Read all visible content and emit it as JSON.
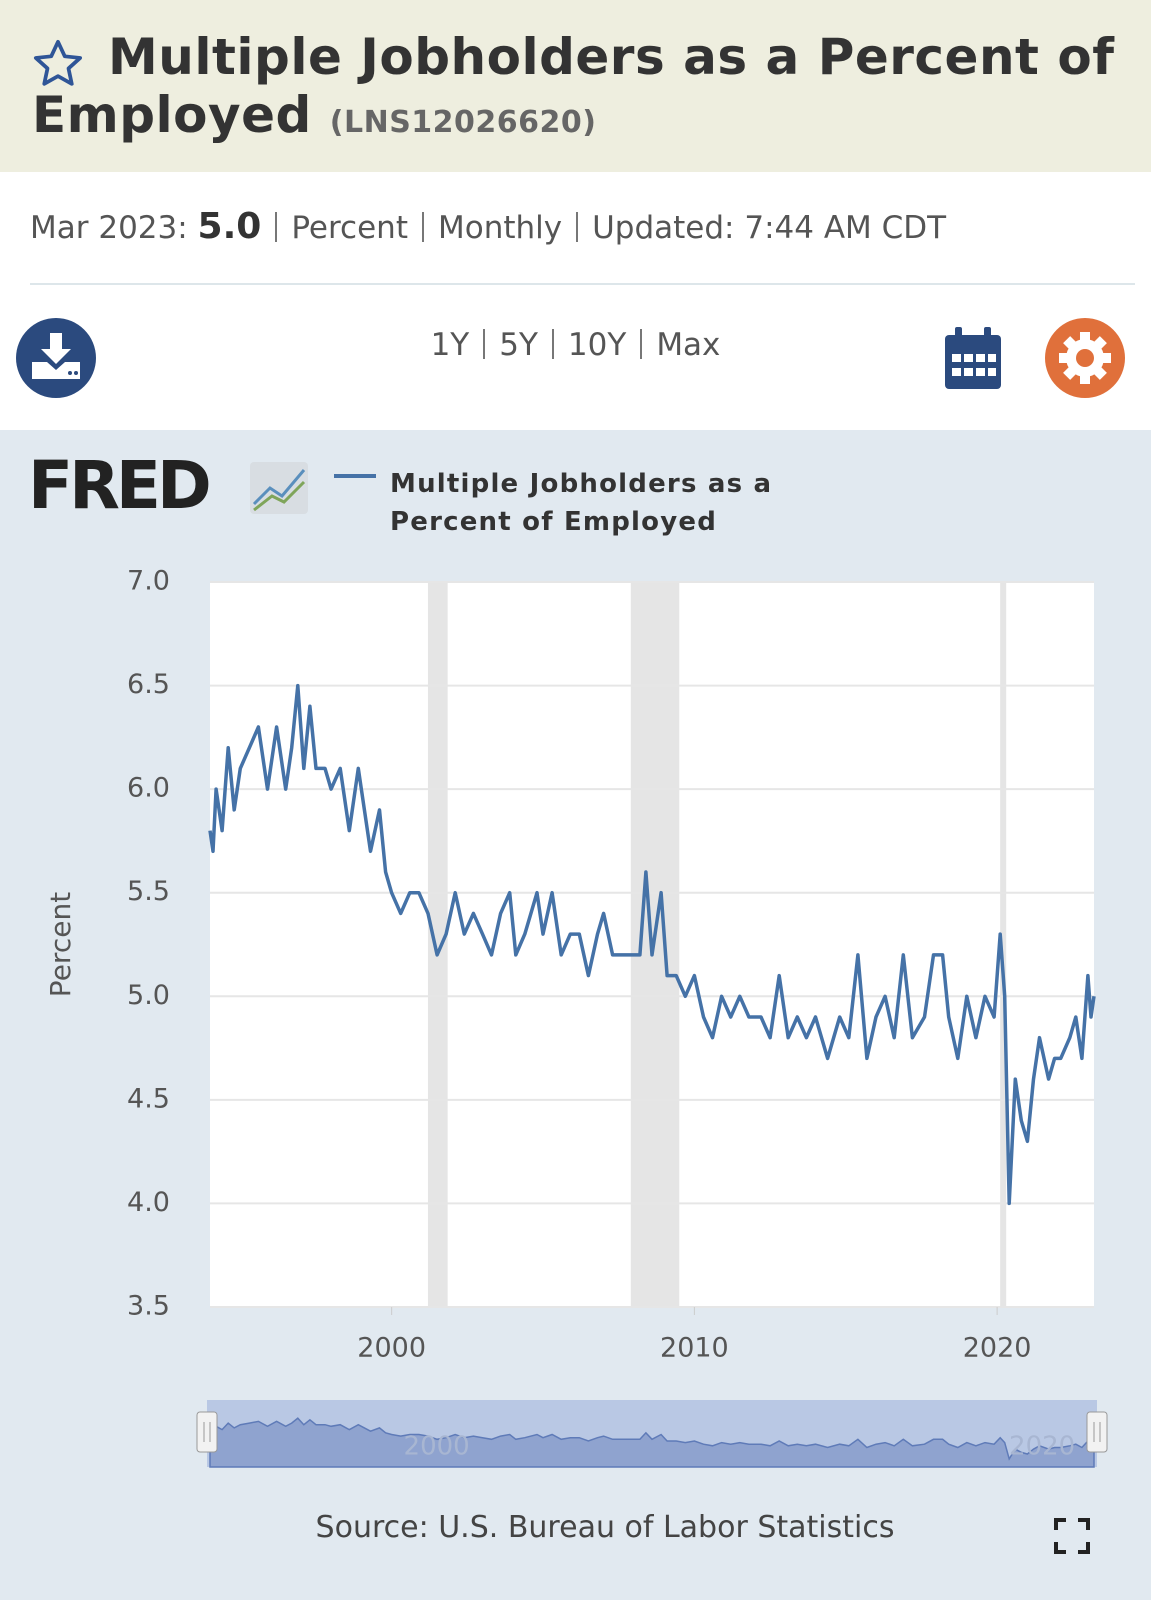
{
  "header": {
    "title": "Multiple Jobholders as a Percent of Employed",
    "series_id": "(LNS12026620)"
  },
  "info": {
    "date": "Mar 2023:",
    "value": "5.0",
    "units": "Percent",
    "frequency": "Monthly",
    "updated_label": "Updated:",
    "updated": "7:44 AM CDT"
  },
  "ranges": [
    "1Y",
    "5Y",
    "10Y",
    "Max"
  ],
  "logo": "FRED",
  "source": "Source: U.S. Bureau of Labor Statistics",
  "chart_data": {
    "type": "line",
    "y_label": "Percent",
    "x": [
      1994.0,
      1994.1,
      1994.2,
      1994.4,
      1994.6,
      1994.8,
      1995.0,
      1995.3,
      1995.6,
      1995.9,
      1996.2,
      1996.5,
      1996.7,
      1996.9,
      1997.1,
      1997.3,
      1997.5,
      1997.8,
      1998.0,
      1998.3,
      1998.6,
      1998.9,
      1999.1,
      1999.3,
      1999.6,
      1999.8,
      2000.0,
      2000.3,
      2000.6,
      2000.9,
      2001.2,
      2001.5,
      2001.8,
      2002.1,
      2002.4,
      2002.7,
      2003.0,
      2003.3,
      2003.6,
      2003.9,
      2004.1,
      2004.4,
      2004.8,
      2005.0,
      2005.3,
      2005.6,
      2005.9,
      2006.2,
      2006.5,
      2006.8,
      2007.0,
      2007.3,
      2007.6,
      2007.9,
      2008.2,
      2008.4,
      2008.6,
      2008.9,
      2009.1,
      2009.4,
      2009.7,
      2010.0,
      2010.3,
      2010.6,
      2010.9,
      2011.2,
      2011.5,
      2011.8,
      2012.2,
      2012.5,
      2012.8,
      2013.1,
      2013.4,
      2013.7,
      2014.0,
      2014.4,
      2014.8,
      2015.1,
      2015.4,
      2015.7,
      2016.0,
      2016.3,
      2016.6,
      2016.9,
      2017.2,
      2017.6,
      2017.9,
      2018.2,
      2018.4,
      2018.7,
      2019.0,
      2019.3,
      2019.6,
      2019.9,
      2020.1,
      2020.25,
      2020.4,
      2020.6,
      2020.8,
      2021.0,
      2021.2,
      2021.4,
      2021.7,
      2021.9,
      2022.1,
      2022.4,
      2022.6,
      2022.8,
      2023.0,
      2023.1,
      2023.2
    ],
    "series": [
      {
        "name": "Multiple Jobholders as a Percent of Employed",
        "color": "#4572a7",
        "values": [
          5.8,
          5.7,
          6.0,
          5.8,
          6.2,
          5.9,
          6.1,
          6.2,
          6.3,
          6.0,
          6.3,
          6.0,
          6.2,
          6.5,
          6.1,
          6.4,
          6.1,
          6.1,
          6.0,
          6.1,
          5.8,
          6.1,
          5.9,
          5.7,
          5.9,
          5.6,
          5.5,
          5.4,
          5.5,
          5.5,
          5.4,
          5.2,
          5.3,
          5.5,
          5.3,
          5.4,
          5.3,
          5.2,
          5.4,
          5.5,
          5.2,
          5.3,
          5.5,
          5.3,
          5.5,
          5.2,
          5.3,
          5.3,
          5.1,
          5.3,
          5.4,
          5.2,
          5.2,
          5.2,
          5.2,
          5.6,
          5.2,
          5.5,
          5.1,
          5.1,
          5.0,
          5.1,
          4.9,
          4.8,
          5.0,
          4.9,
          5.0,
          4.9,
          4.9,
          4.8,
          5.1,
          4.8,
          4.9,
          4.8,
          4.9,
          4.7,
          4.9,
          4.8,
          5.2,
          4.7,
          4.9,
          5.0,
          4.8,
          5.2,
          4.8,
          4.9,
          5.2,
          5.2,
          4.9,
          4.7,
          5.0,
          4.8,
          5.0,
          4.9,
          5.3,
          5.0,
          4.0,
          4.6,
          4.4,
          4.3,
          4.6,
          4.8,
          4.6,
          4.7,
          4.7,
          4.8,
          4.9,
          4.7,
          5.1,
          4.9,
          5.0
        ]
      }
    ],
    "recessions": [
      [
        2001.2,
        2001.85
      ],
      [
        2007.9,
        2009.5
      ],
      [
        2020.1,
        2020.3
      ]
    ],
    "xlim": [
      1994.0,
      2023.2
    ],
    "xticks": [
      2000,
      2010,
      2020
    ],
    "ylim": [
      3.5,
      7.0
    ],
    "yticks": [
      3.5,
      {
        "value": 4,
        "label": "4.0"
      },
      4.5,
      {
        "value": 5,
        "label": "5.0"
      },
      5.5,
      {
        "value": 6,
        "label": "6.0"
      },
      6.5,
      {
        "value": 7,
        "label": "7.0"
      }
    ],
    "grid": true
  }
}
